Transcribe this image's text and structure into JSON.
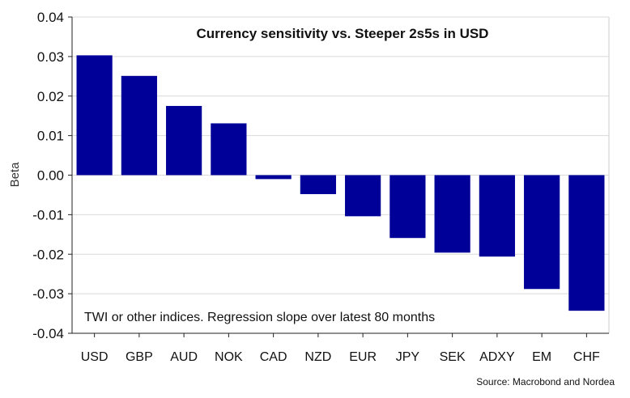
{
  "chart_data": {
    "type": "bar",
    "title": "Currency sensitivity vs. Steeper 2s5s in USD",
    "ylabel": "Beta",
    "xlabel": "",
    "categories": [
      "USD",
      "GBP",
      "AUD",
      "NOK",
      "CAD",
      "NZD",
      "EUR",
      "JPY",
      "SEK",
      "ADXY",
      "EM",
      "CHF"
    ],
    "values": [
      0.0303,
      0.0251,
      0.0175,
      0.0131,
      -0.001,
      -0.0048,
      -0.0104,
      -0.0159,
      -0.0196,
      -0.0206,
      -0.0288,
      -0.0343
    ],
    "ylim": [
      -0.04,
      0.04
    ],
    "yticks": [
      "0.04",
      "0.03",
      "0.02",
      "0.01",
      "0.00",
      "-0.01",
      "-0.02",
      "-0.03",
      "-0.04"
    ],
    "ytick_values": [
      0.04,
      0.03,
      0.02,
      0.01,
      0.0,
      -0.01,
      -0.02,
      -0.03,
      -0.04
    ],
    "bar_color": "#000099",
    "grid": true,
    "annotation": "TWI or other indices. Regression slope over latest 80 months",
    "source": "Source: Macrobond and Nordea"
  }
}
